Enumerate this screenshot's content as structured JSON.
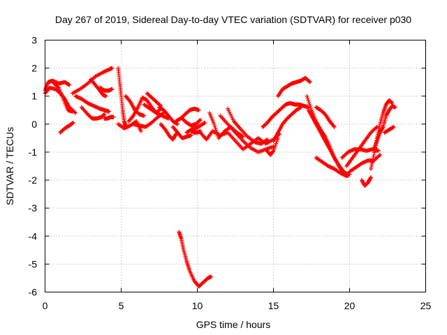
{
  "chart_data": {
    "type": "scatter",
    "title": "Day 267 of 2019, Sidereal Day-to-day VTEC variation (SDTVAR) for receiver p030",
    "xlabel": "GPS time / hours",
    "ylabel": "SDTVAR / TECUs",
    "xlim": [
      0,
      25
    ],
    "ylim": [
      -6,
      3
    ],
    "xticks": [
      "0",
      "5",
      "10",
      "15",
      "20",
      "25"
    ],
    "yticks": [
      "3",
      "2",
      "1",
      "0",
      "-1",
      "-2",
      "-3",
      "-4",
      "-5",
      "-6"
    ],
    "grid": true,
    "marker": "plus",
    "color": "#ff0000",
    "series": [
      {
        "name": "SDTVAR",
        "segments": [
          {
            "x": [
              0.0,
              0.2,
              0.5,
              0.9,
              1.3,
              1.6
            ],
            "y": [
              1.2,
              1.5,
              1.55,
              1.45,
              1.5,
              1.4
            ]
          },
          {
            "x": [
              0.0,
              0.3,
              0.7,
              1.0,
              1.3,
              1.6,
              2.0
            ],
            "y": [
              1.1,
              1.3,
              1.25,
              1.1,
              0.9,
              0.6,
              0.4
            ]
          },
          {
            "x": [
              0.5,
              0.9,
              1.2,
              1.5,
              1.8
            ],
            "y": [
              1.5,
              1.3,
              0.9,
              0.5,
              0.45
            ]
          },
          {
            "x": [
              1.0,
              1.3,
              1.6,
              1.85
            ],
            "y": [
              -0.3,
              -0.15,
              -0.05,
              0.05
            ]
          },
          {
            "x": [
              1.8,
              2.3,
              2.8,
              3.3,
              3.8,
              4.2,
              4.4
            ],
            "y": [
              1.1,
              1.25,
              1.45,
              1.7,
              1.85,
              1.95,
              2.0
            ]
          },
          {
            "x": [
              2.0,
              2.4,
              2.8,
              3.2,
              3.6,
              3.9,
              4.2
            ],
            "y": [
              1.0,
              0.9,
              0.75,
              0.65,
              0.55,
              0.5,
              0.45
            ]
          },
          {
            "x": [
              2.4,
              2.8,
              3.1,
              3.4,
              3.7,
              3.9
            ],
            "y": [
              0.6,
              0.35,
              0.2,
              0.2,
              0.25,
              0.35
            ]
          },
          {
            "x": [
              3.0,
              3.3,
              3.6,
              3.8,
              4.0
            ],
            "y": [
              1.6,
              1.4,
              1.2,
              1.05,
              1.0
            ]
          },
          {
            "x": [
              3.9,
              4.1,
              4.3,
              4.5
            ],
            "y": [
              0.2,
              0.2,
              0.25,
              0.25
            ]
          },
          {
            "x": [
              3.6,
              3.9,
              4.2,
              4.4
            ],
            "y": [
              1.3,
              1.2,
              1.2,
              1.25
            ]
          },
          {
            "x": [
              4.8,
              4.9,
              5.0,
              5.1,
              5.2,
              5.3
            ],
            "y": [
              2.0,
              1.5,
              1.0,
              0.5,
              0.1,
              -0.1
            ]
          },
          {
            "x": [
              4.8,
              5.2,
              5.6,
              6.0,
              6.3
            ],
            "y": [
              0.0,
              -0.15,
              -0.05,
              0.1,
              -0.25
            ]
          },
          {
            "x": [
              5.3,
              5.6,
              5.9,
              6.2,
              6.5
            ],
            "y": [
              1.0,
              0.8,
              0.5,
              0.35,
              0.3
            ]
          },
          {
            "x": [
              5.5,
              5.8,
              6.1,
              6.4,
              6.7,
              7.0,
              7.3,
              7.6
            ],
            "y": [
              0.1,
              0.3,
              0.6,
              0.95,
              0.85,
              0.6,
              0.4,
              0.55
            ]
          },
          {
            "x": [
              5.8,
              6.2,
              6.6,
              7.0,
              7.4,
              7.8
            ],
            "y": [
              0.0,
              -0.05,
              -0.1,
              0.05,
              0.25,
              0.4
            ]
          },
          {
            "x": [
              6.5,
              6.9,
              7.3,
              7.7,
              8.1
            ],
            "y": [
              0.7,
              0.55,
              0.4,
              0.3,
              0.2
            ]
          },
          {
            "x": [
              6.7,
              7.0,
              7.3,
              7.6
            ],
            "y": [
              1.1,
              0.95,
              0.8,
              0.65
            ]
          },
          {
            "x": [
              7.5,
              7.8,
              8.1,
              8.4,
              8.7
            ],
            "y": [
              0.6,
              0.5,
              0.3,
              0.1,
              0.0
            ]
          },
          {
            "x": [
              7.6,
              7.9,
              8.2,
              8.4,
              8.6
            ],
            "y": [
              0.0,
              -0.2,
              -0.45,
              -0.55,
              -0.35
            ]
          },
          {
            "x": [
              8.4,
              8.7,
              9.0,
              9.3,
              9.6
            ],
            "y": [
              -0.1,
              -0.3,
              -0.5,
              -0.45,
              -0.4
            ]
          },
          {
            "x": [
              8.6,
              8.9,
              9.2,
              9.5,
              9.8,
              10.1
            ],
            "y": [
              0.1,
              0.2,
              0.35,
              0.5,
              0.55,
              0.5
            ]
          },
          {
            "x": [
              9.0,
              9.3,
              9.6,
              9.9,
              10.2
            ],
            "y": [
              0.2,
              0.05,
              -0.05,
              0.0,
              0.15
            ]
          },
          {
            "x": [
              9.3,
              9.6,
              9.9,
              10.2,
              10.5
            ],
            "y": [
              -0.3,
              -0.2,
              -0.15,
              -0.05,
              0.05
            ]
          },
          {
            "x": [
              9.6,
              9.8,
              10.0,
              10.2
            ],
            "y": [
              -0.25,
              -0.3,
              -0.3,
              -0.25
            ]
          },
          {
            "x": [
              10.2,
              10.6,
              11.0,
              11.5,
              12.0,
              12.5,
              13.0,
              13.5,
              14.0,
              14.5,
              15.0,
              15.4
            ],
            "y": [
              -0.3,
              -0.55,
              -0.25,
              -0.4,
              -0.3,
              -0.6,
              -0.9,
              -0.7,
              -0.5,
              -0.7,
              -0.55,
              -0.35
            ]
          },
          {
            "x": [
              10.8,
              11.1,
              11.4,
              11.8,
              12.2,
              12.6,
              13.0
            ],
            "y": [
              0.4,
              0.0,
              -0.5,
              -0.25,
              -0.1,
              -0.3,
              -0.45
            ]
          },
          {
            "x": [
              11.5,
              12.0,
              12.5,
              13.0,
              13.5,
              14.0,
              14.5,
              15.0
            ],
            "y": [
              0.3,
              0.0,
              -0.3,
              -0.6,
              -0.85,
              -1.0,
              -0.9,
              -0.8
            ]
          },
          {
            "x": [
              12.0,
              12.4,
              12.8,
              13.3,
              13.8,
              14.2,
              14.6
            ],
            "y": [
              0.55,
              0.1,
              -0.15,
              -0.45,
              -0.65,
              -0.7,
              -0.55
            ]
          },
          {
            "x": [
              14.5,
              14.8,
              15.0,
              15.3
            ],
            "y": [
              -0.9,
              -1.1,
              -0.95,
              -0.5
            ]
          },
          {
            "x": [
              15.3,
              15.6,
              15.9,
              16.2,
              16.5,
              16.8,
              17.1,
              17.4
            ],
            "y": [
              1.0,
              1.25,
              1.35,
              1.45,
              1.5,
              1.55,
              1.65,
              1.5
            ]
          },
          {
            "x": [
              14.3,
              14.6,
              14.9,
              15.2,
              15.5,
              15.8,
              16.1,
              16.4,
              16.7,
              17.0,
              17.3
            ],
            "y": [
              -0.1,
              0.05,
              0.25,
              0.4,
              0.55,
              0.7,
              0.75,
              0.7,
              0.7,
              0.65,
              0.6
            ]
          },
          {
            "x": [
              15.0,
              15.3,
              15.6,
              15.9,
              16.2,
              16.5,
              16.8
            ],
            "y": [
              -0.6,
              -0.3,
              0.0,
              0.2,
              0.35,
              0.5,
              0.6
            ]
          },
          {
            "x": [
              17.2,
              17.5,
              17.8,
              18.1,
              18.4,
              18.7,
              19.0,
              19.3,
              19.6,
              19.9
            ],
            "y": [
              1.0,
              0.5,
              0.1,
              -0.2,
              -0.45,
              -0.8,
              -1.2,
              -1.5,
              -1.75,
              -1.85
            ]
          },
          {
            "x": [
              17.3,
              17.6,
              17.9,
              18.2,
              18.5,
              18.8,
              19.1,
              19.4,
              19.7,
              20.0
            ],
            "y": [
              0.5,
              0.2,
              -0.1,
              -0.4,
              -0.7,
              -1.0,
              -1.3,
              -1.55,
              -1.75,
              -1.8
            ]
          },
          {
            "x": [
              17.8,
              18.1,
              18.4,
              18.7,
              19.0
            ],
            "y": [
              0.6,
              0.5,
              0.35,
              0.1,
              -0.1
            ]
          },
          {
            "x": [
              17.8,
              18.2,
              18.6,
              19.0,
              19.4,
              19.8
            ],
            "y": [
              -1.2,
              -1.35,
              -1.5,
              -1.6,
              -1.75,
              -1.85
            ]
          },
          {
            "x": [
              19.5,
              19.9,
              20.3,
              20.7,
              21.1,
              21.5,
              21.9
            ],
            "y": [
              -1.2,
              -1.0,
              -0.9,
              -0.9,
              -0.95,
              -0.9,
              -0.95
            ]
          },
          {
            "x": [
              19.8,
              20.2,
              20.6,
              21.0,
              21.4,
              21.8
            ],
            "y": [
              -1.5,
              -1.2,
              -0.9,
              -0.6,
              -0.3,
              -0.1
            ]
          },
          {
            "x": [
              20.0,
              20.4,
              20.8,
              21.2,
              21.6,
              22.0
            ],
            "y": [
              -1.7,
              -1.55,
              -1.4,
              -1.3,
              -1.3,
              -1.1
            ]
          },
          {
            "x": [
              20.8,
              21.0,
              21.2,
              21.4
            ],
            "y": [
              -2.0,
              -2.2,
              -2.1,
              -1.9
            ]
          },
          {
            "x": [
              21.4,
              21.6,
              21.8,
              22.0,
              22.2,
              22.4,
              22.6,
              22.8
            ],
            "y": [
              -1.6,
              -1.1,
              -0.5,
              0.0,
              0.4,
              0.7,
              0.85,
              0.75
            ]
          },
          {
            "x": [
              21.6,
              21.8,
              22.0,
              22.2,
              22.4,
              22.6,
              22.8,
              23.0
            ],
            "y": [
              -0.9,
              -0.6,
              -0.3,
              -0.1,
              0.3,
              0.5,
              0.65,
              0.6
            ]
          },
          {
            "x": [
              22.3,
              22.6,
              22.9
            ],
            "y": [
              -0.3,
              -0.2,
              -0.1
            ]
          },
          {
            "x": [
              8.8,
              8.95,
              9.1,
              9.3,
              9.5,
              9.8,
              10.1,
              10.4,
              10.7,
              10.9
            ],
            "y": [
              -3.85,
              -4.1,
              -4.5,
              -4.9,
              -5.25,
              -5.6,
              -5.8,
              -5.65,
              -5.5,
              -5.45
            ]
          }
        ]
      }
    ]
  }
}
